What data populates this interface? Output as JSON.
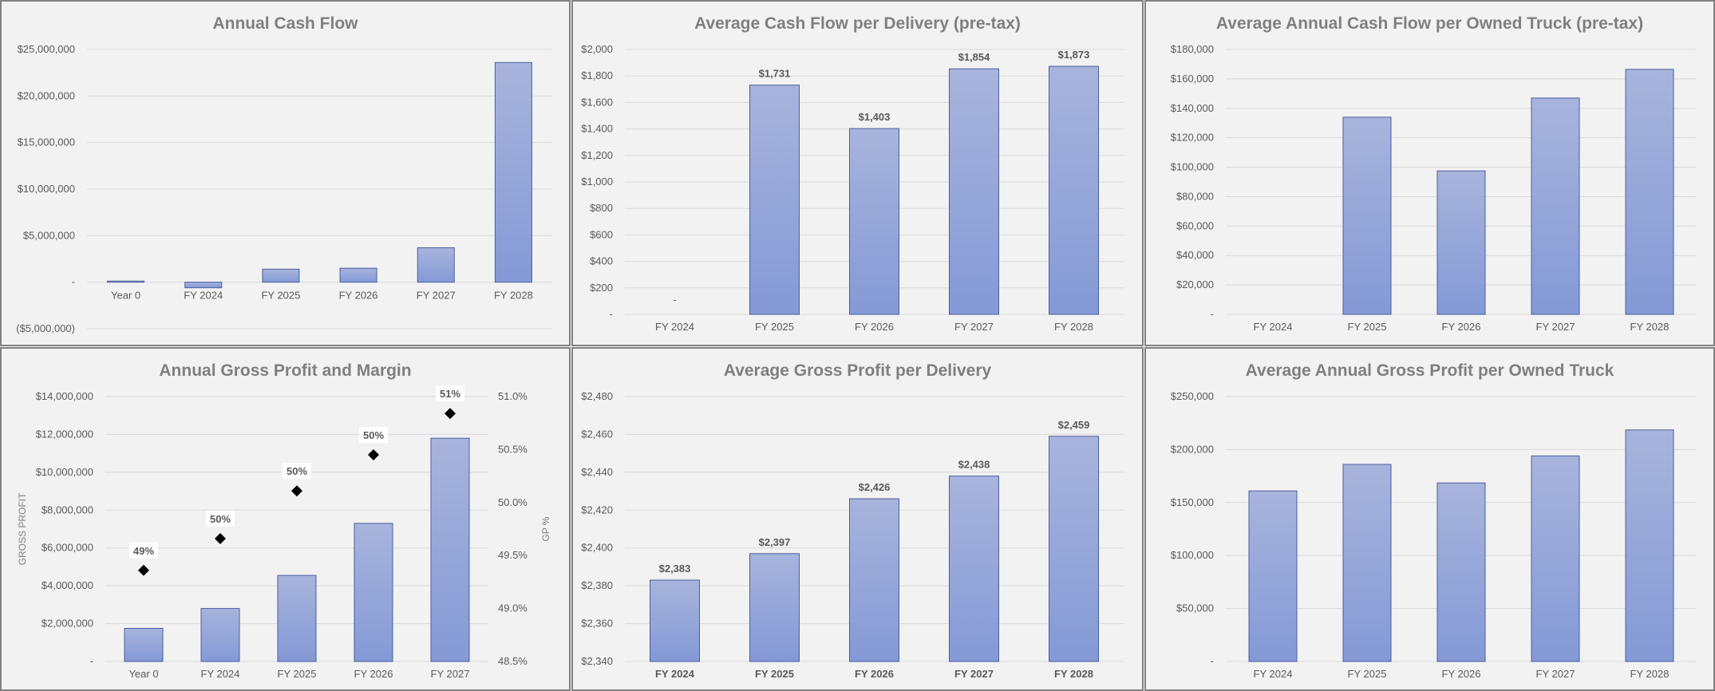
{
  "gradient": {
    "top": "#a8b4dc",
    "bottom": "#8499d6",
    "stroke": "#4a5f9c"
  },
  "chart_data": [
    {
      "id": "annual-cash-flow",
      "type": "bar",
      "title": "Annual Cash Flow",
      "categories": [
        "Year 0",
        "FY 2024",
        "FY 2025",
        "FY 2026",
        "FY 2027",
        "FY 2028"
      ],
      "values": [
        120000,
        -600000,
        1400000,
        1500000,
        3700000,
        23600000
      ],
      "ylim": [
        -5000000,
        25000000
      ],
      "yticks": [
        25000000,
        20000000,
        15000000,
        10000000,
        5000000,
        0,
        -5000000
      ],
      "ytick_labels": [
        "$25,000,000",
        "$20,000,000",
        "$15,000,000",
        "$10,000,000",
        "$5,000,000",
        "-",
        "($5,000,000)"
      ],
      "data_labels": [],
      "grid": true,
      "xlabel": "",
      "ylabel": ""
    },
    {
      "id": "avg-cash-flow-per-delivery",
      "type": "bar",
      "title": "Average Cash Flow per Delivery (pre-tax)",
      "categories": [
        "FY 2024",
        "FY 2025",
        "FY 2026",
        "FY 2027",
        "FY 2028"
      ],
      "values": [
        0,
        1731,
        1403,
        1854,
        1873
      ],
      "ylim": [
        0,
        2000
      ],
      "yticks": [
        2000,
        1800,
        1600,
        1400,
        1200,
        1000,
        800,
        600,
        400,
        200,
        0
      ],
      "ytick_labels": [
        "$2,000",
        "$1,800",
        "$1,600",
        "$1,400",
        "$1,200",
        "$1,000",
        "$800",
        "$600",
        "$400",
        "$200",
        "-"
      ],
      "data_labels": [
        "-",
        "$1,731",
        "$1,403",
        "$1,854",
        "$1,873"
      ],
      "grid": true,
      "xlabel": "",
      "ylabel": ""
    },
    {
      "id": "avg-annual-cash-flow-per-truck",
      "type": "bar",
      "title": "Average Annual Cash Flow per Owned Truck (pre-tax)",
      "categories": [
        "FY 2024",
        "FY 2025",
        "FY 2026",
        "FY 2027",
        "FY 2028"
      ],
      "values": [
        0,
        134000,
        97500,
        147000,
        166500
      ],
      "ylim": [
        0,
        180000
      ],
      "yticks": [
        180000,
        160000,
        140000,
        120000,
        100000,
        80000,
        60000,
        40000,
        20000,
        0
      ],
      "ytick_labels": [
        "$180,000",
        "$160,000",
        "$140,000",
        "$120,000",
        "$100,000",
        "$80,000",
        "$60,000",
        "$40,000",
        "$20,000",
        "-"
      ],
      "data_labels": [],
      "grid": true,
      "xlabel": "",
      "ylabel": ""
    },
    {
      "id": "annual-gross-profit-margin",
      "type": "bar",
      "title": "Annual Gross Profit and Margin",
      "categories": [
        "Year 0",
        "FY 2024",
        "FY 2025",
        "FY 2026",
        "FY 2027"
      ],
      "values": [
        1750000,
        2800000,
        4550000,
        7300000,
        11800000
      ],
      "ylim": [
        0,
        14000000
      ],
      "yticks": [
        14000000,
        12000000,
        10000000,
        8000000,
        6000000,
        4000000,
        2000000,
        0
      ],
      "ytick_labels": [
        "$14,000,000",
        "$12,000,000",
        "$10,000,000",
        "$8,000,000",
        "$6,000,000",
        "$4,000,000",
        "$2,000,000",
        "-"
      ],
      "ylabel": "GROSS PROFIT",
      "secondary": {
        "type": "scatter",
        "values": [
          49.36,
          49.66,
          50.11,
          50.45,
          50.84
        ],
        "data_labels": [
          "49%",
          "50%",
          "50%",
          "50%",
          "51%"
        ],
        "ylim": [
          48.5,
          51.0
        ],
        "yticks": [
          51.0,
          50.5,
          50.0,
          49.5,
          49.0,
          48.5
        ],
        "ytick_labels": [
          "51.0%",
          "50.5%",
          "50.0%",
          "49.5%",
          "49.0%",
          "48.5%"
        ],
        "ylabel": "GP %"
      },
      "data_labels": [],
      "grid": true,
      "xlabel": ""
    },
    {
      "id": "avg-gross-profit-per-delivery",
      "type": "bar",
      "title": "Average Gross Profit per Delivery",
      "categories": [
        "FY 2024",
        "FY 2025",
        "FY 2026",
        "FY 2027",
        "FY 2028"
      ],
      "values": [
        2383,
        2397,
        2426,
        2438,
        2459
      ],
      "ylim": [
        2340,
        2480
      ],
      "yticks": [
        2480,
        2460,
        2440,
        2420,
        2400,
        2380,
        2360,
        2340
      ],
      "ytick_labels": [
        "$2,480",
        "$2,460",
        "$2,440",
        "$2,420",
        "$2,400",
        "$2,380",
        "$2,360",
        "$2,340"
      ],
      "data_labels": [
        "$2,383",
        "$2,397",
        "$2,426",
        "$2,438",
        "$2,459"
      ],
      "bold_categories": true,
      "grid": true,
      "xlabel": "",
      "ylabel": ""
    },
    {
      "id": "avg-annual-gross-profit-per-truck",
      "type": "bar",
      "title": "Average Annual Gross Profit per Owned Truck",
      "categories": [
        "FY 2024",
        "FY 2025",
        "FY 2026",
        "FY 2027",
        "FY 2028"
      ],
      "values": [
        161000,
        186000,
        168500,
        194000,
        218500
      ],
      "ylim": [
        0,
        250000
      ],
      "yticks": [
        250000,
        200000,
        150000,
        100000,
        50000,
        0
      ],
      "ytick_labels": [
        "$250,000",
        "$200,000",
        "$150,000",
        "$100,000",
        "$50,000",
        "-"
      ],
      "data_labels": [],
      "grid": true,
      "xlabel": "",
      "ylabel": ""
    }
  ]
}
